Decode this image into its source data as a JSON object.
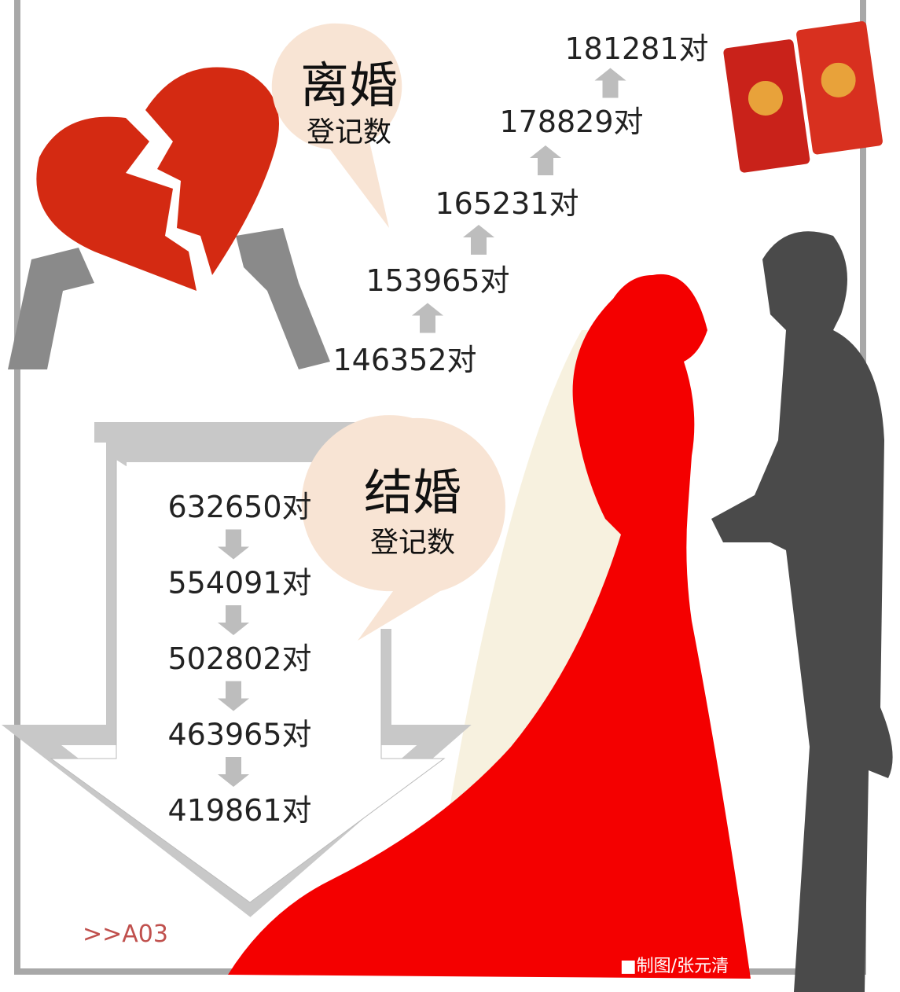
{
  "divorce": {
    "title": "离婚",
    "subtitle": "登记数",
    "counts": [
      "146352对",
      "153965对",
      "165231对",
      "178829对",
      "181281对"
    ]
  },
  "marriage": {
    "title": "结婚",
    "subtitle": "登记数",
    "counts": [
      "632650对",
      "554091对",
      "502802对",
      "463965对",
      "419861对"
    ]
  },
  "page_ref": ">>A03",
  "credit": "■制图/张元清"
}
